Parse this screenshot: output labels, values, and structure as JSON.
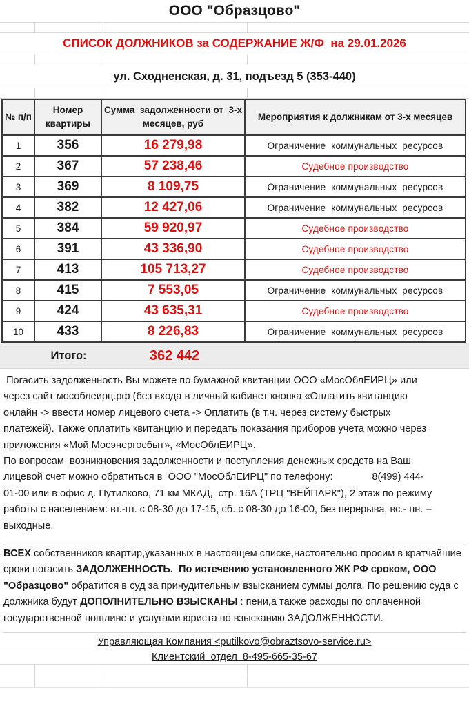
{
  "titles": {
    "company": "ООО \"Образцово\"",
    "list": "СПИСОК ДОЛЖНИКОВ за СОДЕРЖАНИЕ Ж/Ф  на 29.01.2026",
    "address": "ул. Сходненская, д. 31, подъезд 5 (353-440)"
  },
  "colors": {
    "accent_red": "#dd1010",
    "table_border": "#3a3a3a",
    "grid_line": "#d7d7d7",
    "header_bg": "#f0f0f0",
    "total_bg": "#ececec"
  },
  "table": {
    "headers": [
      "№ п/п",
      "Номер квартиры",
      "Сумма  задолженности от  3-х месяцев, руб",
      "Мероприятия к должникам от 3-х месяцев"
    ],
    "rows": [
      {
        "num": "1",
        "flat": "356",
        "debt": "16 279,98",
        "action": "Ограничение  коммунальных  ресурсов",
        "action_color": "black"
      },
      {
        "num": "2",
        "flat": "367",
        "debt": "57 238,46",
        "action": "Судебное производство",
        "action_color": "red"
      },
      {
        "num": "3",
        "flat": "369",
        "debt": "8 109,75",
        "action": "Ограничение  коммунальных  ресурсов",
        "action_color": "black"
      },
      {
        "num": "4",
        "flat": "382",
        "debt": "12 427,06",
        "action": "Ограничение  коммунальных  ресурсов",
        "action_color": "black"
      },
      {
        "num": "5",
        "flat": "384",
        "debt": "59 920,97",
        "action": "Судебное производство",
        "action_color": "red"
      },
      {
        "num": "6",
        "flat": "391",
        "debt": "43 336,90",
        "action": "Судебное производство",
        "action_color": "red"
      },
      {
        "num": "7",
        "flat": "413",
        "debt": "105 713,27",
        "action": "Судебное производство",
        "action_color": "red"
      },
      {
        "num": "8",
        "flat": "415",
        "debt": "7 553,05",
        "action": "Ограничение  коммунальных  ресурсов",
        "action_color": "black"
      },
      {
        "num": "9",
        "flat": "424",
        "debt": "43 635,31",
        "action": "Судебное производство",
        "action_color": "red"
      },
      {
        "num": "10",
        "flat": "433",
        "debt": "8 226,83",
        "action": "Ограничение  коммунальных  ресурсов",
        "action_color": "black"
      }
    ],
    "total_label": "Итого:",
    "total_value": "362 442"
  },
  "info": {
    "paragraph_payment": " Погасить задолженность Вы можете по бумажной квитанции ООО «МосОблЕИРЦ» или\nчерез сайт мособлеирц.рф (без входа в личный кабинет кнопка «Оплатить квитанцию\nонлайн -> ввести номер лицевого счета -> Оплатить (в т.ч. через систему быстрых\nплатежей). Также оплатить квитанцию и передать показания приборов учета можно через\nприложения «Мой Мосэнергосбыт», «МосОблЕИРЦ».",
    "paragraph_contacts": "По вопросам  возникновения задолженности и поступления денежных средств на Ваш\nлицевой счет можно обратиться в  ООО \"МосОблЕИРЦ\" по телефону:              8(499) 444-\n01-00 или в офис д. Путилково, 71 км МКАД,  стр. 16А (ТРЦ \"ВЕЙПАРК\"), 2 этаж по режиму\nработы с населением: вт.-пт. с 08-30 до 17-15, сб. с 08-30 до 16-00, без перерыва, вс.- пн. –\nвыходные.",
    "paragraph_warning_segments": [
      {
        "text": "ВСЕХ",
        "bold": true
      },
      {
        "text": " собственников квартир,указанных в настоящем списке,настоятельно просим в кратчайшие сроки погасить ",
        "bold": false
      },
      {
        "text": "ЗАДОЛЖЕННОСТЬ.",
        "bold": true
      },
      {
        "text": "  ",
        "bold": false
      },
      {
        "text": "По истечению установленного ЖК РФ сроком, ООО \"Образцово\"",
        "bold": true
      },
      {
        "text": " обратится в суд за принудительным взысканием суммы долга. По решению суда с должника будут ",
        "bold": false
      },
      {
        "text": "ДОПОЛНИТЕЛЬНО ВЗЫСКАНЫ",
        "bold": true
      },
      {
        "text": " : пени,а также расходы по оплаченной государственной пошлине и услугами юриста по взысканию ЗАДОЛЖЕННОСТИ.",
        "bold": false
      }
    ]
  },
  "footer": {
    "management_line": "Управляющая Компания <putilkovo@obraztsovo-service.ru>",
    "client_line": "Клиентский  отдел  8-495-665-35-67"
  }
}
